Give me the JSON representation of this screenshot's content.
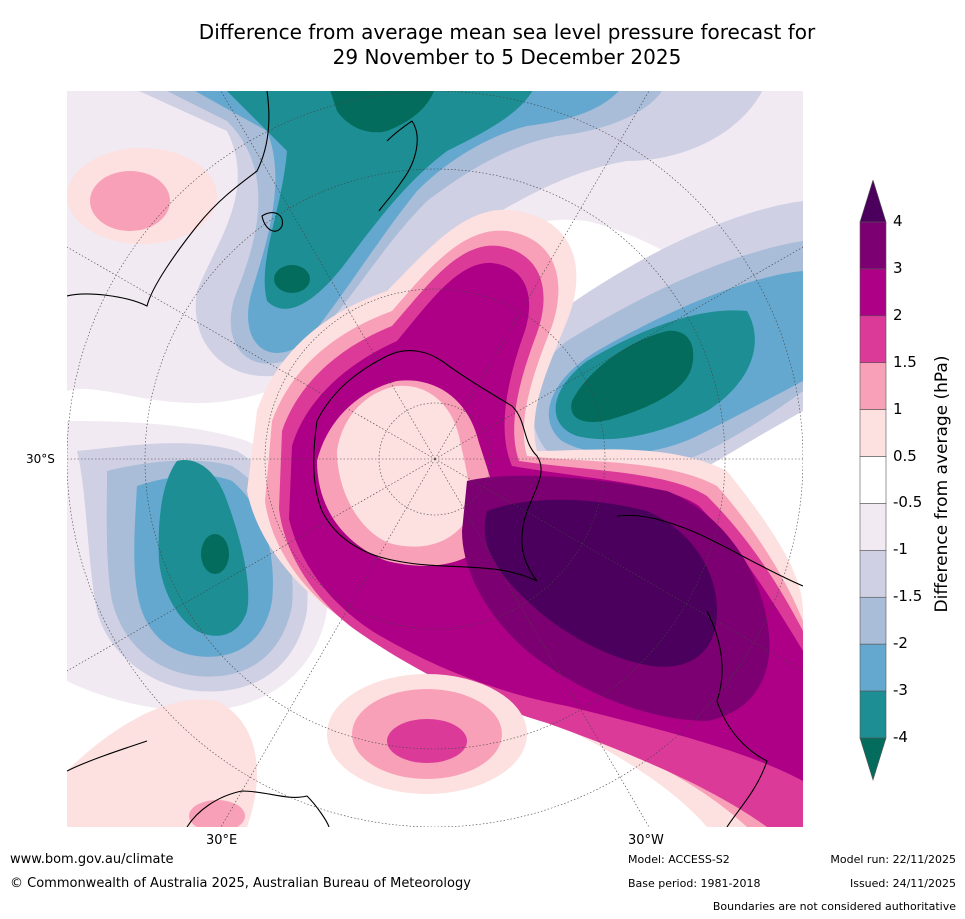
{
  "title": {
    "line1": "Difference from average mean sea level pressure forecast for",
    "line2": "29 November to 5 December 2025"
  },
  "map": {
    "projection": "south polar stereographic",
    "lat_labels": [
      {
        "text": "30°S"
      }
    ],
    "lon_labels": [
      {
        "text": "30°E"
      },
      {
        "text": "30°W"
      }
    ]
  },
  "colorbar": {
    "title": "Difference from average (hPa)",
    "ticks": [
      "4",
      "3",
      "2",
      "1.5",
      "1",
      "0.5",
      "-0.5",
      "-1",
      "-1.5",
      "-2",
      "-3",
      "-4"
    ],
    "colors_top_to_bottom": [
      "#4a005c",
      "#7d0072",
      "#ae0086",
      "#db3a99",
      "#f8a0b8",
      "#fde0e0",
      "#ffffff",
      "#f1eaf2",
      "#d0d0e4",
      "#a9bcd8",
      "#64a8cf",
      "#1d8f94",
      "#046c5c"
    ]
  },
  "footer": {
    "website": "www.bom.gov.au/climate",
    "copyright": "© Commonwealth of Australia 2025, Australian Bureau of Meteorology",
    "model": "Model: ACCESS-S2",
    "base_period": "Base period: 1981-2018",
    "model_run": "Model run: 22/11/2025",
    "issued": "Issued: 24/11/2025",
    "disclaimer": "Boundaries are not considered authoritative"
  }
}
